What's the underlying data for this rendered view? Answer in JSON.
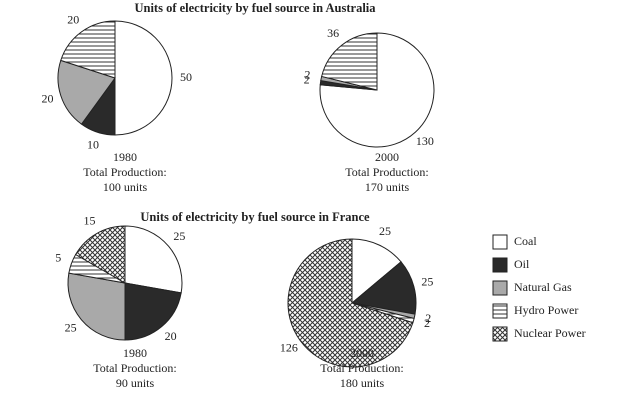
{
  "chart_data": [
    {
      "type": "pie",
      "title": "Units of electricity by fuel source in Australia",
      "year": "1980",
      "total_label": "Total Production:",
      "total": "100 units",
      "categories": [
        "Coal",
        "Oil",
        "Natural Gas",
        "Hydro Power"
      ],
      "values": [
        50,
        10,
        20,
        20
      ]
    },
    {
      "type": "pie",
      "year": "2000",
      "total_label": "Total Production:",
      "total": "170 units",
      "categories": [
        "Coal",
        "Oil",
        "Natural Gas",
        "Hydro Power"
      ],
      "values": [
        130,
        2,
        2,
        36
      ]
    },
    {
      "type": "pie",
      "title": "Units of electricity by fuel source in France",
      "year": "1980",
      "total_label": "Total Production:",
      "total": "90 units",
      "categories": [
        "Coal",
        "Oil",
        "Natural Gas",
        "Hydro Power",
        "Nuclear Power"
      ],
      "values": [
        25,
        20,
        25,
        5,
        15
      ]
    },
    {
      "type": "pie",
      "year": "2000",
      "total_label": "Total Production:",
      "total": "180 units",
      "categories": [
        "Coal",
        "Oil",
        "Natural Gas",
        "Hydro Power",
        "Nuclear Power"
      ],
      "values": [
        25,
        25,
        2,
        2,
        126
      ]
    }
  ],
  "legend": {
    "categories": [
      "Coal",
      "Oil",
      "Natural Gas",
      "Hydro Power",
      "Nuclear Power"
    ],
    "colors": [
      "#ffffff",
      "#2a2a2a",
      "#a9a9a9",
      "#ffffff",
      "#ffffff"
    ],
    "patterns": [
      "none",
      "none",
      "none",
      "horizontal",
      "crosshatch"
    ]
  }
}
